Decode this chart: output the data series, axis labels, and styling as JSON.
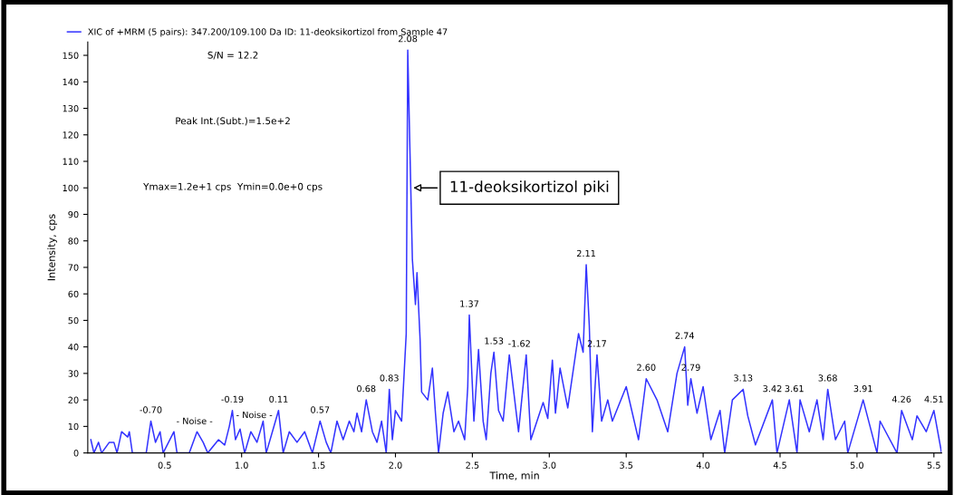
{
  "chart_data": {
    "type": "line",
    "xlabel": "Time, min",
    "ylabel": "Intensity, cps",
    "xlim": [
      0,
      5.55
    ],
    "ylim": [
      0,
      155
    ],
    "xticks": [
      {
        "value": 0.5,
        "label": "0.5"
      },
      {
        "value": 1.0,
        "label": "1.0"
      },
      {
        "value": 1.5,
        "label": "1.5"
      },
      {
        "value": 2.0,
        "label": "2.0"
      },
      {
        "value": 2.5,
        "label": "2.5"
      },
      {
        "value": 3.0,
        "label": "3.0"
      },
      {
        "value": 3.5,
        "label": "3.5"
      },
      {
        "value": 4.0,
        "label": "4.0"
      },
      {
        "value": 4.5,
        "label": "4.5"
      },
      {
        "value": 5.0,
        "label": "5.0"
      },
      {
        "value": 5.5,
        "label": "5.5"
      }
    ],
    "yticks": [
      0,
      10,
      20,
      30,
      40,
      50,
      60,
      70,
      80,
      90,
      100,
      110,
      120,
      130,
      140,
      150
    ],
    "grid": false,
    "legend": "top left",
    "marker": "none",
    "line_style": "solid",
    "series": [
      {
        "name": "XIC of +MRM (5 pairs): 347.200/109.100 Da ID: 11-deoksikortizol from Sample 47",
        "color": "#3333ff",
        "x": [
          0.02,
          0.04,
          0.07,
          0.09,
          0.14,
          0.17,
          0.19,
          0.22,
          0.26,
          0.27,
          0.29,
          0.38,
          0.41,
          0.44,
          0.47,
          0.49,
          0.56,
          0.58,
          0.66,
          0.71,
          0.75,
          0.78,
          0.85,
          0.89,
          0.92,
          0.94,
          0.96,
          0.99,
          1.02,
          1.06,
          1.1,
          1.14,
          1.16,
          1.2,
          1.24,
          1.27,
          1.31,
          1.36,
          1.41,
          1.46,
          1.51,
          1.55,
          1.58,
          1.62,
          1.66,
          1.7,
          1.73,
          1.75,
          1.78,
          1.81,
          1.85,
          1.88,
          1.91,
          1.94,
          1.96,
          1.98,
          2.0,
          2.04,
          2.07,
          2.08,
          2.09,
          2.11,
          2.13,
          2.14,
          2.16,
          2.17,
          2.21,
          2.24,
          2.26,
          2.28,
          2.31,
          2.34,
          2.38,
          2.41,
          2.45,
          2.47,
          2.48,
          2.51,
          2.54,
          2.57,
          2.59,
          2.62,
          2.64,
          2.67,
          2.7,
          2.74,
          2.8,
          2.85,
          2.88,
          2.96,
          2.99,
          3.02,
          3.04,
          3.07,
          3.12,
          3.19,
          3.22,
          3.24,
          3.26,
          3.28,
          3.31,
          3.34,
          3.38,
          3.41,
          3.5,
          3.58,
          3.63,
          3.7,
          3.77,
          3.83,
          3.88,
          3.9,
          3.92,
          3.96,
          4.0,
          4.05,
          4.11,
          4.14,
          4.19,
          4.26,
          4.29,
          4.34,
          4.45,
          4.48,
          4.56,
          4.61,
          4.63,
          4.69,
          4.74,
          4.78,
          4.81,
          4.86,
          4.92,
          4.94,
          5.04,
          5.13,
          5.15,
          5.26,
          5.29,
          5.36,
          5.39,
          5.45,
          5.5,
          5.55
        ],
        "values": [
          5,
          0,
          4,
          0,
          4,
          4,
          0,
          8,
          6,
          8,
          0,
          0,
          12,
          4,
          8,
          0,
          8,
          0,
          0,
          8,
          4,
          0,
          5,
          3,
          10,
          16,
          5,
          9,
          0,
          8,
          4,
          12,
          0,
          8,
          16,
          0,
          8,
          4,
          8,
          0,
          12,
          4,
          0,
          12,
          5,
          12,
          8,
          15,
          8,
          20,
          8,
          4,
          12,
          0,
          24,
          5,
          16,
          12,
          45,
          152,
          125,
          73,
          56,
          68,
          43,
          23,
          20,
          32,
          15,
          0,
          15,
          23,
          8,
          12,
          5,
          25,
          52,
          12,
          39,
          12,
          5,
          30,
          38,
          16,
          12,
          37,
          8,
          37,
          5,
          19,
          13,
          35,
          15,
          32,
          17,
          45,
          38,
          71,
          48,
          8,
          37,
          12,
          20,
          12,
          25,
          5,
          28,
          20,
          8,
          30,
          40,
          18,
          28,
          15,
          25,
          5,
          16,
          0,
          20,
          24,
          14,
          3,
          20,
          0,
          20,
          0,
          20,
          8,
          20,
          5,
          24,
          5,
          12,
          0,
          20,
          0,
          12,
          0,
          16,
          5,
          14,
          8,
          16,
          0
        ]
      }
    ],
    "annotations": [
      {
        "text": "11-deoksikortizol piki",
        "x": 2.1,
        "y": 100
      },
      "S/N = 12.2",
      "Peak Int.(Subt.)=1.5e+2",
      "Ymax=1.2e+1 cps  Ymin=0.0e+0 cps",
      {
        "text": "-0.70",
        "x": 0.41,
        "y": 12
      },
      "- Noise -",
      {
        "text": "-0.19",
        "x": 0.94,
        "y": 16
      },
      "- Noise -",
      {
        "text": "0.11",
        "x": 1.24,
        "y": 16
      },
      {
        "text": "0.57",
        "x": 1.51,
        "y": 12
      },
      {
        "text": "0.68",
        "x": 1.81,
        "y": 20
      },
      {
        "text": "0.83",
        "x": 1.96,
        "y": 24
      },
      {
        "text": "2.08",
        "x": 2.08,
        "y": 152
      },
      {
        "text": "1.37",
        "x": 2.48,
        "y": 52
      },
      {
        "text": "1.53",
        "x": 2.64,
        "y": 38
      },
      {
        "text": "-1.62",
        "x": 2.74,
        "y": 37
      },
      {
        "text": "2.11",
        "x": 3.24,
        "y": 71
      },
      {
        "text": "2.17",
        "x": 3.31,
        "y": 37
      },
      {
        "text": "2.60",
        "x": 3.63,
        "y": 28
      },
      {
        "text": "2.74",
        "x": 3.88,
        "y": 40
      },
      {
        "text": "2.79",
        "x": 3.92,
        "y": 28
      },
      {
        "text": "3.13",
        "x": 4.26,
        "y": 24
      },
      {
        "text": "3.42",
        "x": 4.45,
        "y": 20
      },
      {
        "text": "3.61",
        "x": 4.56,
        "y": 20
      },
      {
        "text": "3.68",
        "x": 4.81,
        "y": 24
      },
      {
        "text": "3.91",
        "x": 5.04,
        "y": 20
      },
      {
        "text": "4.26",
        "x": 5.29,
        "y": 16
      },
      {
        "text": "4.51",
        "x": 5.5,
        "y": 16
      }
    ]
  }
}
